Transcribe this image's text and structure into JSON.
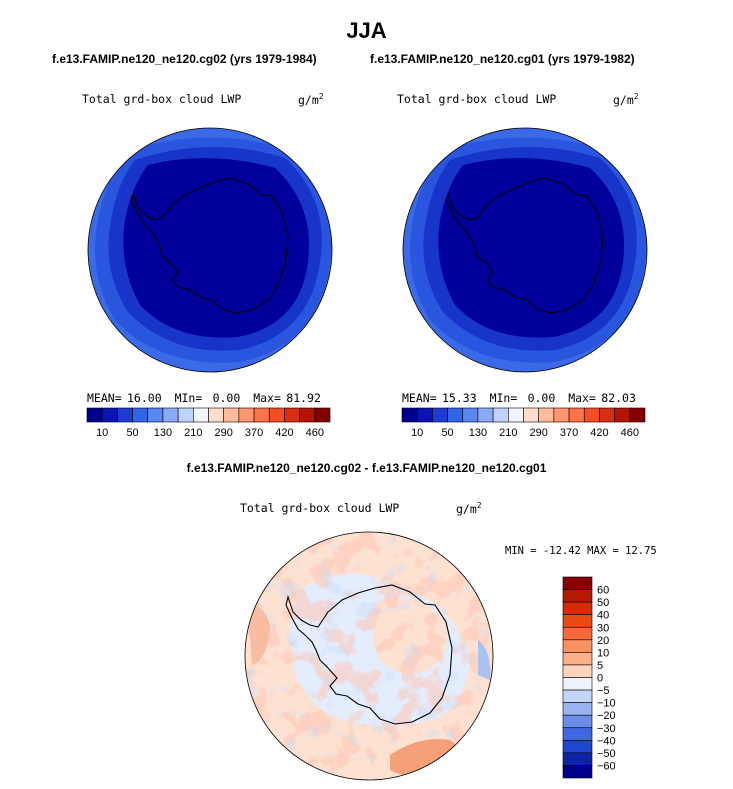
{
  "figure": {
    "title": "JJA",
    "left_subtitle": "f.e13.FAMIP.ne120_ne120.cg02 (yrs 1979-1984)",
    "right_subtitle": "f.e13.FAMIP.ne120_ne120.cg01 (yrs 1979-1982)",
    "diff_subtitle": "f.e13.FAMIP.ne120_ne120.cg02 - f.e13.FAMIP.ne120_ne120.cg01"
  },
  "chart_data": [
    {
      "type": "heatmap",
      "projection": "south-polar-stereographic",
      "title": "Total grd-box cloud LWP",
      "units": "g/m",
      "units_exp": "2",
      "stats": {
        "mean_label": "MEAN=",
        "mean": "16.00",
        "min_label": "MIn=",
        "min": "0.00",
        "max_label": "Max=",
        "max": "81.92"
      },
      "colorbar": {
        "orientation": "horizontal",
        "tick_labels": [
          "10",
          "50",
          "130",
          "210",
          "290",
          "370",
          "420",
          "460"
        ],
        "colors": [
          "#00008f",
          "#0a14b4",
          "#1e3cd2",
          "#3264e6",
          "#5a87f0",
          "#8cabf5",
          "#bed2fa",
          "#f0f5ff",
          "#ffdccb",
          "#ffbb9b",
          "#ff9670",
          "#ff734a",
          "#f54e24",
          "#d92e0f",
          "#b41404",
          "#820000"
        ]
      }
    },
    {
      "type": "heatmap",
      "projection": "south-polar-stereographic",
      "title": "Total grd-box cloud LWP",
      "units": "g/m",
      "units_exp": "2",
      "stats": {
        "mean_label": "MEAN=",
        "mean": "15.33",
        "min_label": "MIn=",
        "min": "0.00",
        "max_label": "Max=",
        "max": "82.03"
      },
      "colorbar": {
        "orientation": "horizontal",
        "tick_labels": [
          "10",
          "50",
          "130",
          "210",
          "290",
          "370",
          "420",
          "460"
        ],
        "colors": [
          "#00008f",
          "#0a14b4",
          "#1e3cd2",
          "#3264e6",
          "#5a87f0",
          "#8cabf5",
          "#bed2fa",
          "#f0f5ff",
          "#ffdccb",
          "#ffbb9b",
          "#ff9670",
          "#ff734a",
          "#f54e24",
          "#d92e0f",
          "#b41404",
          "#820000"
        ]
      }
    },
    {
      "type": "heatmap",
      "projection": "south-polar-stereographic",
      "title": "Total grd-box cloud LWP",
      "units": "g/m",
      "units_exp": "2",
      "stats_text": "MIN = -12.42 MAX =  12.75",
      "colorbar": {
        "orientation": "vertical",
        "tick_labels": [
          "60",
          "50",
          "40",
          "30",
          "20",
          "10",
          "5",
          "0",
          "−5",
          "−10",
          "−20",
          "−30",
          "−40",
          "−50",
          "−60"
        ],
        "colors": [
          "#8b0000",
          "#b31a00",
          "#d62c00",
          "#ea4a14",
          "#f5693a",
          "#f8905f",
          "#fbb08a",
          "#fdd3bc",
          "#eef4fc",
          "#c4d6f5",
          "#98b4ee",
          "#6a8ee8",
          "#3f68e2",
          "#1e46d0",
          "#0d24a6",
          "#00008c"
        ]
      }
    }
  ]
}
